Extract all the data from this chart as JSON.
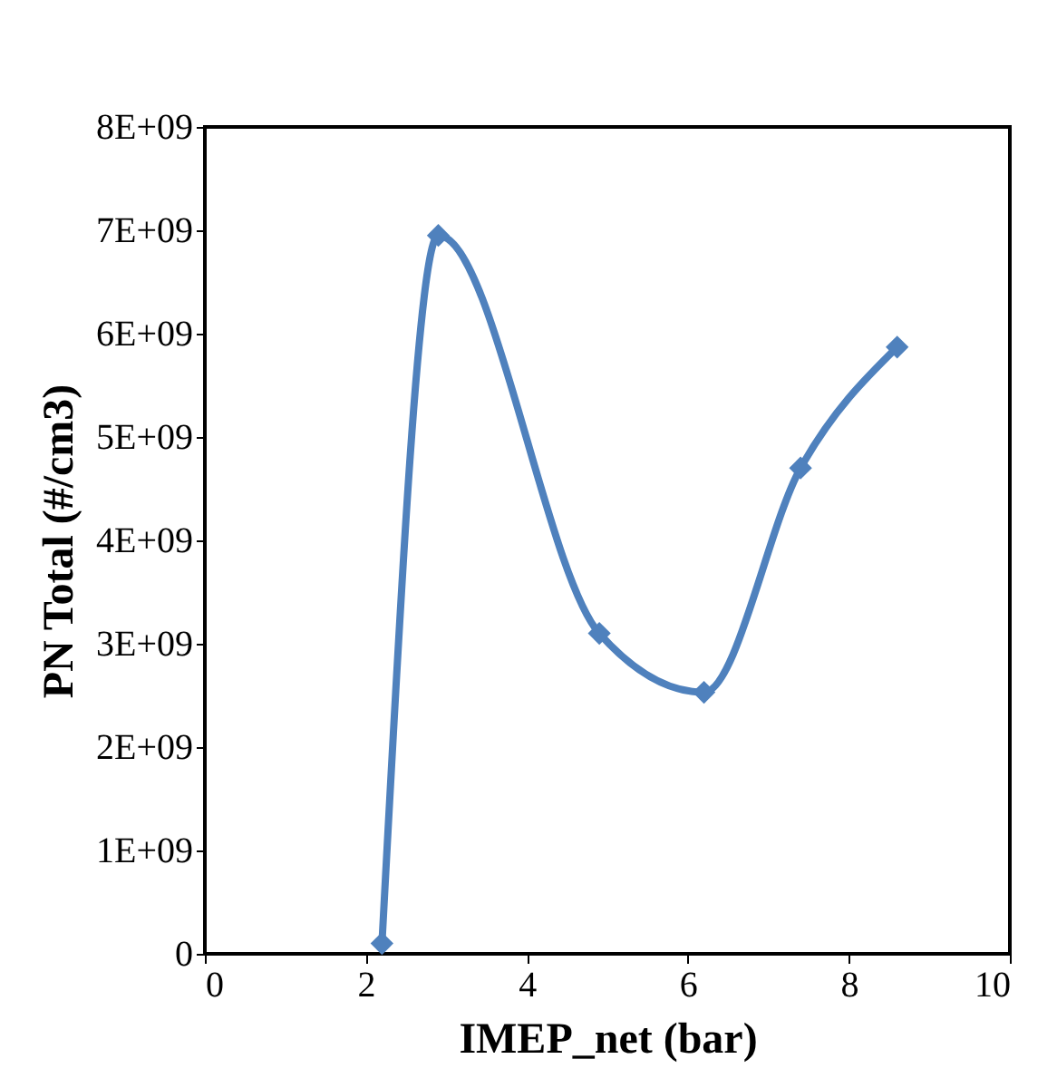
{
  "chart_data": {
    "type": "line",
    "xlabel": "IMEP_net (bar)",
    "ylabel": "PN Total (#/cm3)",
    "x": [
      2.2,
      2.9,
      4.9,
      6.2,
      7.4,
      8.6
    ],
    "series": [
      {
        "color": "#4f81bd",
        "values": [
          100000000,
          6950000000,
          3100000000,
          2530000000,
          4700000000,
          5870000000
        ]
      }
    ],
    "xlim": [
      0,
      10
    ],
    "xticks": [
      0,
      2,
      4,
      6,
      8,
      10
    ],
    "ylim": [
      0,
      8000000000
    ],
    "yticks": [
      0,
      {
        "value": 1000000000,
        "label": "1E+09"
      },
      {
        "value": 2000000000,
        "label": "2E+09"
      },
      {
        "value": 3000000000,
        "label": "3E+09"
      },
      {
        "value": 4000000000,
        "label": "4E+09"
      },
      {
        "value": 5000000000,
        "label": "5E+09"
      },
      {
        "value": 6000000000,
        "label": "6E+09"
      },
      {
        "value": 7000000000,
        "label": "7E+09"
      },
      {
        "value": 8000000000,
        "label": "8E+09"
      }
    ],
    "marker": "diamond",
    "line_style": "solid",
    "grid": false
  }
}
